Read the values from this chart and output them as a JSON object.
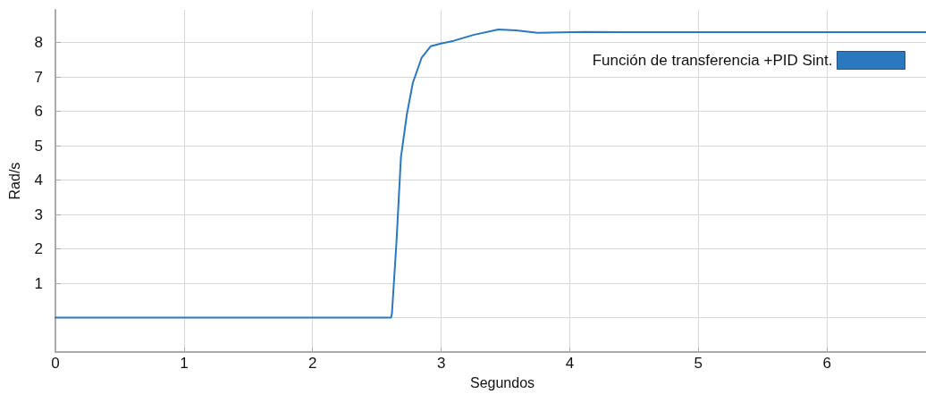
{
  "chart_data": {
    "type": "line",
    "xlabel": "Segundos",
    "ylabel": "Rad/s",
    "series": [
      {
        "name": "Función de transferencia +PID Sint.",
        "color": "#2a78bd",
        "x": [
          0,
          2.61,
          2.617,
          2.652,
          2.687,
          2.733,
          2.779,
          2.848,
          2.918,
          2.998,
          3.098,
          3.25,
          3.444,
          3.583,
          3.749,
          4.11,
          4.44,
          5.0,
          6.0,
          6.77
        ],
        "values": [
          0,
          0,
          0.12,
          2.19,
          4.67,
          5.91,
          6.82,
          7.56,
          7.89,
          7.97,
          8.05,
          8.22,
          8.38,
          8.35,
          8.28,
          8.31,
          8.3,
          8.3,
          8.3,
          8.3
        ]
      }
    ],
    "xlim": [
      0,
      6.77
    ],
    "xticks": [
      0,
      1,
      2,
      3,
      4,
      5,
      6
    ],
    "ylim": [
      -1,
      8.95
    ],
    "yticks": [
      {
        "value": 0,
        "label": null
      },
      1,
      2,
      3,
      4,
      5,
      6,
      7,
      8
    ],
    "grid": true,
    "legend": "top right",
    "marker": "none",
    "line_style": "solid"
  }
}
